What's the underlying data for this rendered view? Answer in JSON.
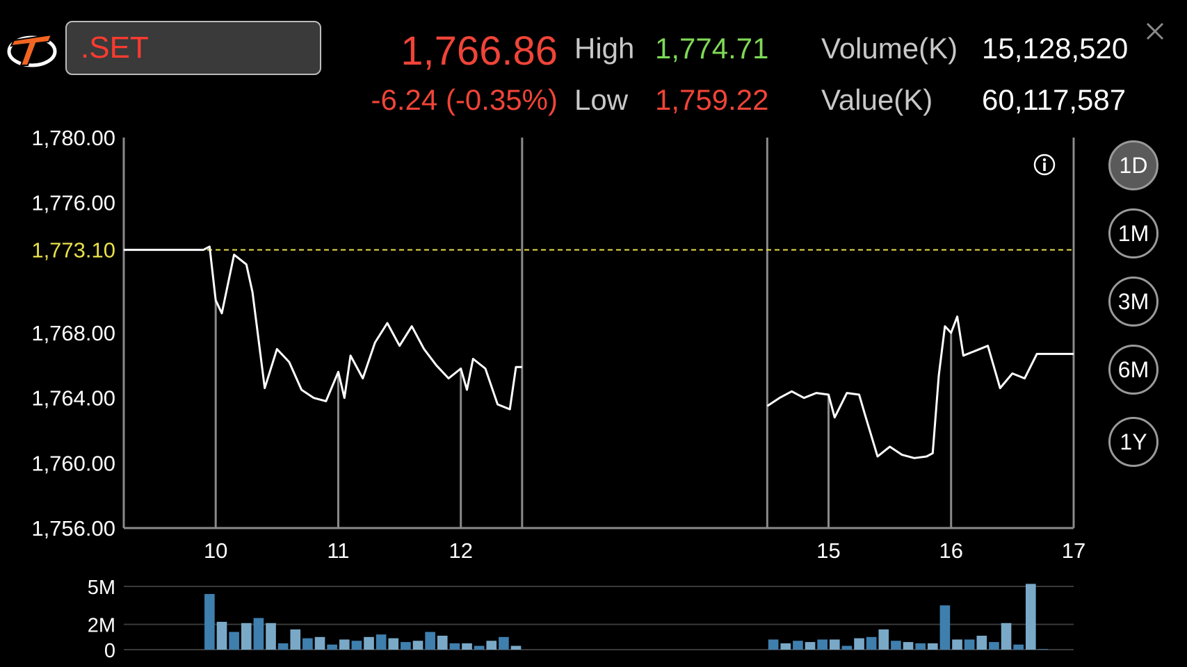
{
  "header": {
    "symbol": ".SET",
    "last_price": "1,766.86",
    "change": "-6.24 (-0.35%)",
    "high_label": "High",
    "high_value": "1,774.71",
    "low_label": "Low",
    "low_value": "1,759.22",
    "volume_label": "Volume(K)",
    "volume_value": "15,128,520",
    "value_label": "Value(K)",
    "value_value": "60,117,587"
  },
  "icons": {
    "logo": "brand-logo-icon",
    "close": "close-icon",
    "info": "info-icon"
  },
  "colors": {
    "up": "#7ed957",
    "down": "#f04438",
    "reference": "#e8e04a",
    "volume": "#3f7fae"
  },
  "periods": [
    {
      "label": "1D",
      "active": true
    },
    {
      "label": "1M",
      "active": false
    },
    {
      "label": "3M",
      "active": false
    },
    {
      "label": "6M",
      "active": false
    },
    {
      "label": "1Y",
      "active": false
    }
  ],
  "chart_data": [
    {
      "type": "line",
      "y_tick_labels": [
        "1,780.00",
        "1,776.00",
        "1,768.00",
        "1,764.00",
        "1,760.00",
        "1,756.00"
      ],
      "y_ticks": [
        1780,
        1776,
        1768,
        1764,
        1760,
        1756
      ],
      "ylim": [
        1756,
        1780
      ],
      "reference_label": "1,773.10",
      "reference_value": 1773.1,
      "x_tick_labels": [
        "10",
        "11",
        "12",
        "15",
        "16",
        "17"
      ],
      "x_ticks": [
        10,
        11,
        12,
        15,
        16,
        17
      ],
      "xlim": [
        9.25,
        17
      ],
      "session_breaks": [
        12.5,
        14.5
      ],
      "grid": false,
      "series": [
        {
          "x": [
            9.25,
            9.9,
            9.95,
            10.0,
            10.05,
            10.15,
            10.25,
            10.3,
            10.4,
            10.5,
            10.6,
            10.7,
            10.8,
            10.9,
            11.0,
            11.05,
            11.1,
            11.2,
            11.3,
            11.4,
            11.5,
            11.6,
            11.7,
            11.8,
            11.9,
            12.0,
            12.05,
            12.1,
            12.2,
            12.3,
            12.4,
            12.45,
            12.5,
            14.5,
            14.6,
            14.7,
            14.8,
            14.9,
            15.0,
            15.05,
            15.15,
            15.25,
            15.3,
            15.4,
            15.5,
            15.6,
            15.7,
            15.8,
            15.85,
            15.9,
            15.95,
            16.0,
            16.05,
            16.1,
            16.2,
            16.3,
            16.4,
            16.5,
            16.6,
            16.7,
            16.8,
            16.9,
            17.0
          ],
          "y": [
            1773.1,
            1773.1,
            1773.3,
            1770.0,
            1769.2,
            1772.8,
            1772.2,
            1770.5,
            1764.6,
            1767.0,
            1766.2,
            1764.5,
            1764.0,
            1763.8,
            1765.6,
            1764.0,
            1766.6,
            1765.2,
            1767.4,
            1768.6,
            1767.2,
            1768.4,
            1767.0,
            1766.0,
            1765.2,
            1765.8,
            1764.5,
            1766.4,
            1765.8,
            1763.6,
            1763.3,
            1765.9,
            1765.9,
            1763.5,
            1764.0,
            1764.4,
            1764.0,
            1764.3,
            1764.2,
            1762.8,
            1764.3,
            1764.2,
            1762.9,
            1760.4,
            1761.0,
            1760.5,
            1760.3,
            1760.4,
            1760.6,
            1765.4,
            1768.4,
            1768.0,
            1769.0,
            1766.6,
            1766.9,
            1767.2,
            1764.6,
            1765.5,
            1765.2,
            1766.7,
            1766.7,
            1766.7,
            1766.7
          ]
        }
      ]
    },
    {
      "type": "bar",
      "y_tick_labels": [
        "5M",
        "2M",
        "0"
      ],
      "y_ticks": [
        5000000,
        2000000,
        0
      ],
      "ylim": [
        0,
        5000000
      ],
      "x": [
        9.95,
        10.05,
        10.15,
        10.25,
        10.35,
        10.45,
        10.55,
        10.65,
        10.75,
        10.85,
        10.95,
        11.05,
        11.15,
        11.25,
        11.35,
        11.45,
        11.55,
        11.65,
        11.75,
        11.85,
        11.95,
        12.05,
        12.15,
        12.25,
        12.35,
        12.45,
        14.55,
        14.65,
        14.75,
        14.85,
        14.95,
        15.05,
        15.15,
        15.25,
        15.35,
        15.45,
        15.55,
        15.65,
        15.75,
        15.85,
        15.95,
        16.05,
        16.15,
        16.25,
        16.35,
        16.45,
        16.55,
        16.65,
        16.75
      ],
      "values": [
        4400000,
        2200000,
        1400000,
        2100000,
        2500000,
        2100000,
        500000,
        1600000,
        900000,
        1000000,
        400000,
        800000,
        700000,
        1000000,
        1200000,
        900000,
        600000,
        700000,
        1400000,
        1100000,
        500000,
        500000,
        300000,
        700000,
        1000000,
        300000,
        800000,
        500000,
        700000,
        600000,
        800000,
        800000,
        300000,
        900000,
        1000000,
        1600000,
        700000,
        600000,
        500000,
        500000,
        3500000,
        800000,
        800000,
        1100000,
        600000,
        2100000,
        400000,
        5200000,
        50000
      ],
      "series_colors": {
        "bright": "#3f7fae",
        "dim": "#7aa9c8"
      }
    }
  ]
}
